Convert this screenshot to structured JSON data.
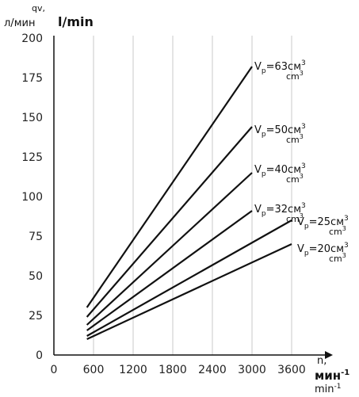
{
  "chart_data": {
    "type": "line",
    "y_label": {
      "symbol": "qv,",
      "unit_ru": "л/мин",
      "unit_en": "l/min"
    },
    "x_label": {
      "symbol": "n,",
      "unit_ru": "мин",
      "unit_en": "min",
      "exponent": "-1"
    },
    "xlim": [
      0,
      3600
    ],
    "ylim": [
      0,
      200
    ],
    "x_ticks": [
      "0",
      "600",
      "1200",
      "1800",
      "2400",
      "3000",
      "3600"
    ],
    "y_ticks": [
      "0",
      "25",
      "50",
      "75",
      "100",
      "125",
      "150",
      "175",
      "200"
    ],
    "grid": "vertical",
    "series": [
      {
        "name": "Vp=63",
        "label": {
          "prefix": "V",
          "sub": "p",
          "value": "=63см",
          "sup": "3",
          "unit_en": "cm",
          "unit_en_sup": "3"
        },
        "points": [
          [
            500,
            30
          ],
          [
            3000,
            182
          ]
        ]
      },
      {
        "name": "Vp=50",
        "label": {
          "prefix": "V",
          "sub": "p",
          "value": "=50см",
          "sup": "3",
          "unit_en": "cm",
          "unit_en_sup": "3"
        },
        "points": [
          [
            500,
            24
          ],
          [
            3000,
            144
          ]
        ]
      },
      {
        "name": "Vp=40",
        "label": {
          "prefix": "V",
          "sub": "p",
          "value": "=40см",
          "sup": "3",
          "unit_en": "cm",
          "unit_en_sup": "3"
        },
        "points": [
          [
            500,
            19
          ],
          [
            3000,
            115
          ]
        ]
      },
      {
        "name": "Vp=32",
        "label": {
          "prefix": "V",
          "sub": "p",
          "value": "=32см",
          "sup": "3",
          "unit_en": "cm",
          "unit_en_sup": "3"
        },
        "points": [
          [
            500,
            15.5
          ],
          [
            3000,
            91
          ]
        ]
      },
      {
        "name": "Vp=25",
        "label": {
          "prefix": "V",
          "sub": "p",
          "value": "=25см",
          "sup": "3",
          "unit_en": "cm",
          "unit_en_sup": "3"
        },
        "points": [
          [
            500,
            12
          ],
          [
            3600,
            85
          ]
        ]
      },
      {
        "name": "Vp=20",
        "label": {
          "prefix": "V",
          "sub": "p",
          "value": "=20см",
          "sup": "3",
          "unit_en": "cm",
          "unit_en_sup": "3"
        },
        "points": [
          [
            500,
            10
          ],
          [
            3600,
            70
          ]
        ]
      }
    ]
  }
}
